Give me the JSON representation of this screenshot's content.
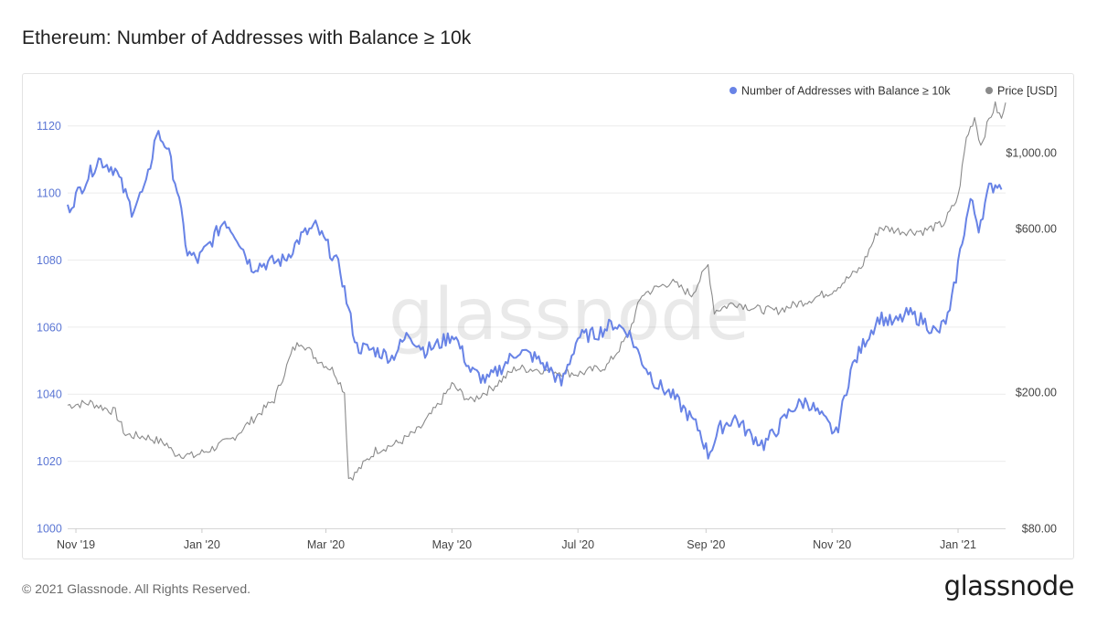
{
  "header": {
    "title": "Ethereum: Number of Addresses with Balance ≥ 10k"
  },
  "footer": {
    "copyright": "© 2021 Glassnode. All Rights Reserved.",
    "brand": "glassnode"
  },
  "watermark": "glassnode",
  "colors": {
    "addresses": "#6883e6",
    "price": "#8a8a8a",
    "grid": "#ececec",
    "left_axis_text": "#5b76d4",
    "right_axis_text": "#444444"
  },
  "chart_data": {
    "type": "line",
    "title": "Ethereum: Number of Addresses with Balance ≥ 10k",
    "grid": true,
    "legend_position": "top-right",
    "x_ticks": [
      "Nov '19",
      "Jan '20",
      "Mar '20",
      "May '20",
      "Jul '20",
      "Sep '20",
      "Nov '20",
      "Jan '21"
    ],
    "x_tick_dates": [
      "2019-11-01",
      "2020-01-01",
      "2020-03-01",
      "2020-05-01",
      "2020-07-01",
      "2020-09-01",
      "2020-11-01",
      "2021-01-01"
    ],
    "x_range": [
      "2019-10-28",
      "2021-01-24"
    ],
    "y_left": {
      "label": "",
      "range": [
        1000,
        1130
      ],
      "ticks": [
        1000,
        1020,
        1040,
        1060,
        1080,
        1100,
        1120
      ]
    },
    "y_right": {
      "label": "",
      "scale": "log",
      "range": [
        80,
        1500
      ],
      "ticks": [
        80,
        200,
        600,
        1000
      ],
      "tick_labels": [
        "$80.00",
        "$200.00",
        "$600.00",
        "$1,000.00"
      ]
    },
    "series": [
      {
        "name": "Number of Addresses with Balance ≥ 10k",
        "axis": "left",
        "points": [
          [
            "2019-10-28",
            1095
          ],
          [
            "2019-11-05",
            1103
          ],
          [
            "2019-11-12",
            1110
          ],
          [
            "2019-11-20",
            1107
          ],
          [
            "2019-11-28",
            1095
          ],
          [
            "2019-12-05",
            1102
          ],
          [
            "2019-12-10",
            1118
          ],
          [
            "2019-12-15",
            1114
          ],
          [
            "2019-12-20",
            1101
          ],
          [
            "2019-12-25",
            1082
          ],
          [
            "2019-12-30",
            1080
          ],
          [
            "2020-01-05",
            1085
          ],
          [
            "2020-01-12",
            1092
          ],
          [
            "2020-01-18",
            1087
          ],
          [
            "2020-01-25",
            1078
          ],
          [
            "2020-02-01",
            1079
          ],
          [
            "2020-02-10",
            1080
          ],
          [
            "2020-02-18",
            1087
          ],
          [
            "2020-02-25",
            1090
          ],
          [
            "2020-03-02",
            1084
          ],
          [
            "2020-03-08",
            1077
          ],
          [
            "2020-03-12",
            1065
          ],
          [
            "2020-03-16",
            1054
          ],
          [
            "2020-03-25",
            1053
          ],
          [
            "2020-04-02",
            1051
          ],
          [
            "2020-04-10",
            1058
          ],
          [
            "2020-04-18",
            1053
          ],
          [
            "2020-04-25",
            1055
          ],
          [
            "2020-05-02",
            1058
          ],
          [
            "2020-05-10",
            1047
          ],
          [
            "2020-05-18",
            1044
          ],
          [
            "2020-05-25",
            1048
          ],
          [
            "2020-06-02",
            1053
          ],
          [
            "2020-06-10",
            1051
          ],
          [
            "2020-06-18",
            1047
          ],
          [
            "2020-06-23",
            1043
          ],
          [
            "2020-07-01",
            1057
          ],
          [
            "2020-07-10",
            1058
          ],
          [
            "2020-07-18",
            1061
          ],
          [
            "2020-07-25",
            1059
          ],
          [
            "2020-08-01",
            1050
          ],
          [
            "2020-08-08",
            1043
          ],
          [
            "2020-08-15",
            1040
          ],
          [
            "2020-08-22",
            1035
          ],
          [
            "2020-08-29",
            1029
          ],
          [
            "2020-09-02",
            1022
          ],
          [
            "2020-09-08",
            1030
          ],
          [
            "2020-09-15",
            1033
          ],
          [
            "2020-09-22",
            1028
          ],
          [
            "2020-09-29",
            1025
          ],
          [
            "2020-10-06",
            1030
          ],
          [
            "2020-10-13",
            1036
          ],
          [
            "2020-10-20",
            1038
          ],
          [
            "2020-10-27",
            1033
          ],
          [
            "2020-11-03",
            1028
          ],
          [
            "2020-11-10",
            1047
          ],
          [
            "2020-11-17",
            1056
          ],
          [
            "2020-11-24",
            1063
          ],
          [
            "2020-12-01",
            1061
          ],
          [
            "2020-12-08",
            1064
          ],
          [
            "2020-12-15",
            1062
          ],
          [
            "2020-12-22",
            1058
          ],
          [
            "2020-12-28",
            1064
          ],
          [
            "2021-01-03",
            1086
          ],
          [
            "2021-01-07",
            1098
          ],
          [
            "2021-01-11",
            1090
          ],
          [
            "2021-01-16",
            1101
          ],
          [
            "2021-01-20",
            1103
          ],
          [
            "2021-01-22",
            1101
          ]
        ]
      },
      {
        "name": "Price [USD]",
        "axis": "right",
        "points": [
          [
            "2019-10-28",
            183
          ],
          [
            "2019-11-08",
            186
          ],
          [
            "2019-11-20",
            175
          ],
          [
            "2019-11-25",
            150
          ],
          [
            "2019-12-05",
            148
          ],
          [
            "2019-12-15",
            141
          ],
          [
            "2019-12-18",
            133
          ],
          [
            "2019-12-28",
            130
          ],
          [
            "2020-01-05",
            136
          ],
          [
            "2020-01-15",
            145
          ],
          [
            "2020-01-25",
            165
          ],
          [
            "2020-02-05",
            190
          ],
          [
            "2020-02-14",
            265
          ],
          [
            "2020-02-18",
            282
          ],
          [
            "2020-02-25",
            252
          ],
          [
            "2020-03-05",
            230
          ],
          [
            "2020-03-10",
            200
          ],
          [
            "2020-03-12",
            112
          ],
          [
            "2020-03-15",
            115
          ],
          [
            "2020-03-25",
            135
          ],
          [
            "2020-04-05",
            142
          ],
          [
            "2020-04-15",
            155
          ],
          [
            "2020-04-25",
            185
          ],
          [
            "2020-05-01",
            210
          ],
          [
            "2020-05-10",
            188
          ],
          [
            "2020-05-20",
            205
          ],
          [
            "2020-06-01",
            235
          ],
          [
            "2020-06-15",
            232
          ],
          [
            "2020-07-01",
            226
          ],
          [
            "2020-07-15",
            238
          ],
          [
            "2020-07-25",
            290
          ],
          [
            "2020-08-01",
            385
          ],
          [
            "2020-08-15",
            420
          ],
          [
            "2020-08-25",
            385
          ],
          [
            "2020-09-02",
            470
          ],
          [
            "2020-09-05",
            345
          ],
          [
            "2020-09-15",
            365
          ],
          [
            "2020-09-25",
            350
          ],
          [
            "2020-10-05",
            345
          ],
          [
            "2020-10-20",
            370
          ],
          [
            "2020-11-01",
            395
          ],
          [
            "2020-11-15",
            460
          ],
          [
            "2020-11-24",
            605
          ],
          [
            "2020-12-05",
            590
          ],
          [
            "2020-12-15",
            590
          ],
          [
            "2020-12-25",
            620
          ],
          [
            "2021-01-01",
            740
          ],
          [
            "2021-01-05",
            1100
          ],
          [
            "2021-01-09",
            1270
          ],
          [
            "2021-01-12",
            1050
          ],
          [
            "2021-01-16",
            1250
          ],
          [
            "2021-01-19",
            1370
          ],
          [
            "2021-01-22",
            1250
          ],
          [
            "2021-01-24",
            1400
          ]
        ]
      }
    ]
  }
}
